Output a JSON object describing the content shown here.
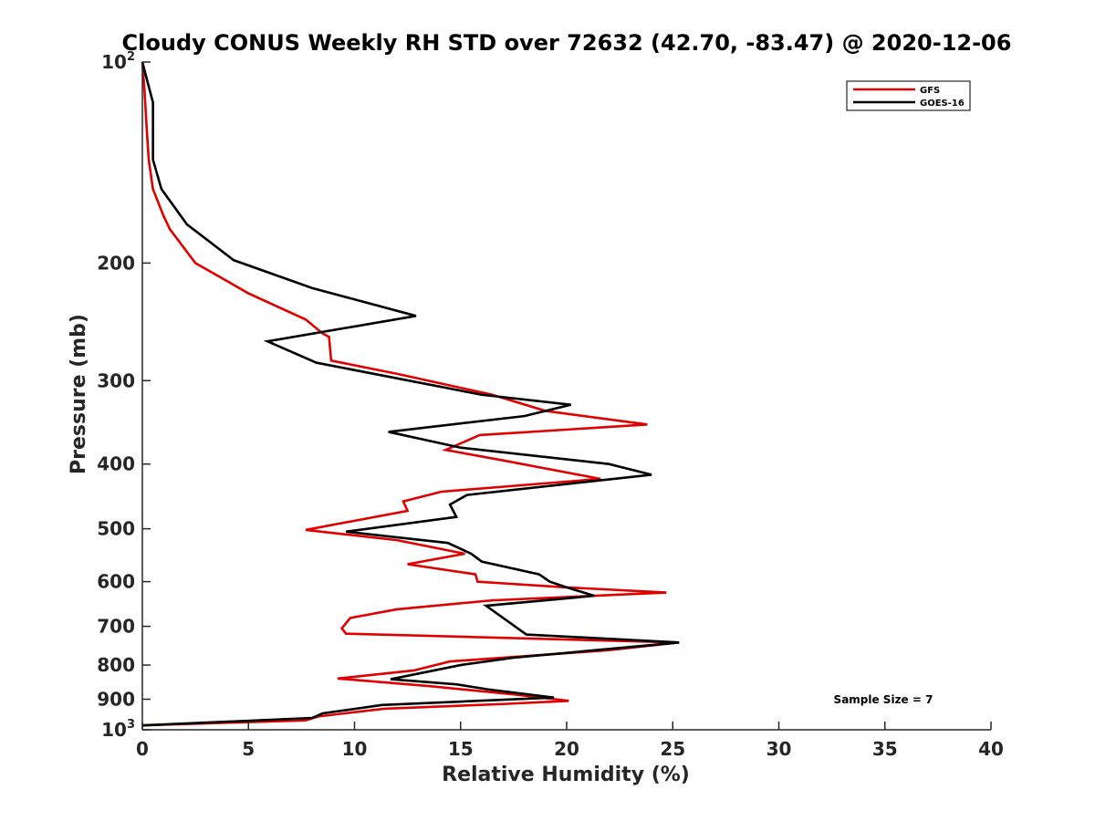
{
  "chart_data": {
    "type": "line",
    "title": "Cloudy CONUS Weekly RH STD over 72632 (42.70, -83.47) @ 2020-12-06",
    "xlabel": "Relative Humidity (%)",
    "ylabel": "Pressure (mb)",
    "xlim": [
      0,
      40
    ],
    "ylim": [
      1000,
      100
    ],
    "yscale": "log",
    "y_reversed": true,
    "grid": false,
    "legend_position": "top-right",
    "annotation": "Sample Size = 7",
    "x_ticks": [
      "0",
      "5",
      "10",
      "15",
      "20",
      "25",
      "30",
      "35",
      "40"
    ],
    "y_ticks": [
      {
        "value": 100,
        "base": "10",
        "exp": "2"
      },
      {
        "value": 200,
        "label": "200"
      },
      {
        "value": 300,
        "label": "300"
      },
      {
        "value": 400,
        "label": "400"
      },
      {
        "value": 500,
        "label": "500"
      },
      {
        "value": 600,
        "label": "600"
      },
      {
        "value": 700,
        "label": "700"
      },
      {
        "value": 800,
        "label": "800"
      },
      {
        "value": 900,
        "label": "900"
      },
      {
        "value": 1000,
        "base": "10",
        "exp": "3"
      }
    ],
    "series": [
      {
        "name": "GFS",
        "color": "#e00000",
        "points": [
          [
            0.0,
            100
          ],
          [
            0.1,
            110
          ],
          [
            0.2,
            125
          ],
          [
            0.3,
            140
          ],
          [
            0.5,
            155
          ],
          [
            1.0,
            170
          ],
          [
            1.3,
            178
          ],
          [
            2.5,
            200
          ],
          [
            5.0,
            222
          ],
          [
            7.7,
            243
          ],
          [
            8.5,
            255
          ],
          [
            8.8,
            258
          ],
          [
            8.9,
            280
          ],
          [
            12.0,
            293
          ],
          [
            16.5,
            315
          ],
          [
            19.0,
            333
          ],
          [
            23.8,
            349
          ],
          [
            15.9,
            362
          ],
          [
            14.3,
            381
          ],
          [
            17.0,
            395
          ],
          [
            21.6,
            421
          ],
          [
            14.1,
            440
          ],
          [
            12.3,
            455
          ],
          [
            12.5,
            470
          ],
          [
            7.7,
            502
          ],
          [
            12.0,
            520
          ],
          [
            15.2,
            545
          ],
          [
            12.5,
            565
          ],
          [
            15.7,
            585
          ],
          [
            15.8,
            600
          ],
          [
            20.0,
            612
          ],
          [
            24.7,
            623
          ],
          [
            16.5,
            640
          ],
          [
            12.0,
            660
          ],
          [
            9.8,
            680
          ],
          [
            9.4,
            705
          ],
          [
            9.6,
            718
          ],
          [
            25.3,
            740
          ],
          [
            22.0,
            760
          ],
          [
            14.5,
            790
          ],
          [
            12.8,
            815
          ],
          [
            9.2,
            838
          ],
          [
            13.5,
            860
          ],
          [
            17.5,
            885
          ],
          [
            20.1,
            905
          ],
          [
            17.0,
            915
          ],
          [
            11.4,
            930
          ],
          [
            8.3,
            955
          ],
          [
            7.7,
            968
          ],
          [
            0.0,
            985
          ]
        ]
      },
      {
        "name": "GOES-16",
        "color": "#000000",
        "points": [
          [
            0.0,
            100
          ],
          [
            0.5,
            115
          ],
          [
            0.5,
            140
          ],
          [
            0.9,
            155
          ],
          [
            2.1,
            175
          ],
          [
            4.3,
            198
          ],
          [
            8.0,
            218
          ],
          [
            12.9,
            240
          ],
          [
            5.9,
            262
          ],
          [
            8.2,
            282
          ],
          [
            16.0,
            315
          ],
          [
            20.2,
            326
          ],
          [
            18.0,
            339
          ],
          [
            11.6,
            358
          ],
          [
            15.0,
            378
          ],
          [
            22.0,
            400
          ],
          [
            24.0,
            415
          ],
          [
            15.3,
            445
          ],
          [
            14.5,
            460
          ],
          [
            14.8,
            480
          ],
          [
            9.6,
            505
          ],
          [
            14.4,
            525
          ],
          [
            15.5,
            545
          ],
          [
            16.0,
            560
          ],
          [
            18.7,
            585
          ],
          [
            19.2,
            600
          ],
          [
            20.0,
            612
          ],
          [
            21.3,
            630
          ],
          [
            16.2,
            652
          ],
          [
            18.1,
            720
          ],
          [
            25.3,
            740
          ],
          [
            17.5,
            780
          ],
          [
            15.0,
            800
          ],
          [
            11.7,
            840
          ],
          [
            14.8,
            855
          ],
          [
            16.3,
            870
          ],
          [
            19.4,
            895
          ],
          [
            11.3,
            918
          ],
          [
            8.5,
            945
          ],
          [
            8.0,
            960
          ],
          [
            0.0,
            985
          ]
        ]
      }
    ]
  }
}
